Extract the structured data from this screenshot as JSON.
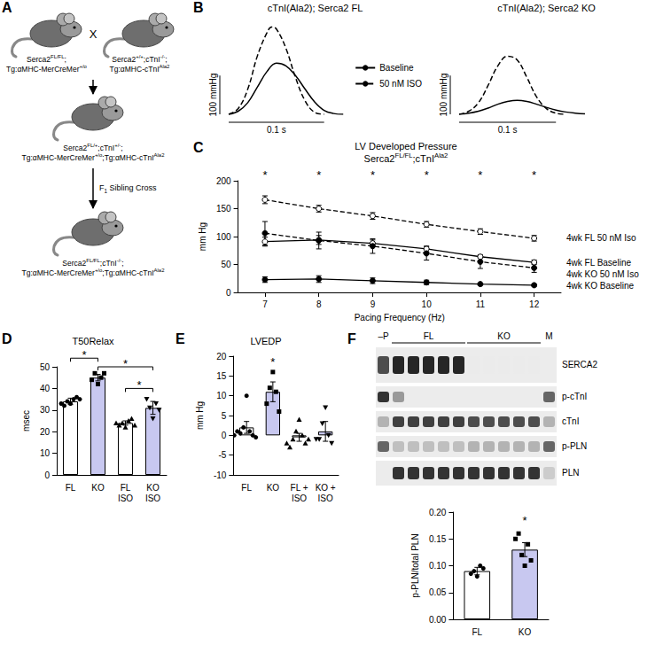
{
  "figure": {
    "A": {
      "panel": "A",
      "parent_1": [
        [
          "Serca2",
          {
            "sup": "FL/FL"
          },
          ";"
        ],
        [
          "Tg:αMHC-MerCreMer",
          {
            "sup": "+/o"
          }
        ]
      ],
      "cross": "X",
      "parent_2": [
        [
          "Serca2",
          {
            "sup": "+/+"
          },
          ";cTnI",
          {
            "sup": "-/-"
          },
          ";"
        ],
        [
          "Tg:αMHC-cTnI",
          {
            "sup": "Ala2"
          }
        ]
      ],
      "f1": [
        [
          "Serca2",
          {
            "sup": "FL/+"
          },
          ";cTnI",
          {
            "sup": "+/-"
          },
          ";"
        ],
        [
          "Tg:αMHC-MerCreMer",
          {
            "sup": "+/o"
          },
          ";Tg:αMHC-cTnI",
          {
            "sup": "Ala2"
          }
        ]
      ],
      "step": [
        [
          "F",
          {
            "sub": "1"
          },
          " Sibling Cross"
        ]
      ],
      "offspring": [
        [
          "Serca2",
          {
            "sup": "FL/FL"
          },
          ";cTnI",
          {
            "sup": "-/-"
          },
          ";"
        ],
        [
          "Tg:αMHC-MerCreMer",
          {
            "sup": "+/o"
          },
          ";Tg:αMHC-cTnI",
          {
            "sup": "Ala2"
          }
        ]
      ]
    },
    "F_blot": {
      "panel": "F",
      "lane_heads": [
        "–P",
        "FL",
        "KO",
        "M"
      ],
      "rows": [
        "SERCA2",
        "p-cTnI",
        "cTnI",
        "p-PLN",
        "PLN"
      ]
    }
  },
  "chart_data": [
    {
      "panel": "B",
      "type": "line",
      "title": "cTnI(Ala2); Serca2 FL",
      "tick_labels": false,
      "legend": "right",
      "xlim": [
        0,
        0.13
      ],
      "ylim": [
        0,
        240
      ],
      "scale_bar": {
        "x": 0.1,
        "x_label": "0.1 s",
        "y": 100,
        "y_label": "100 mmHg"
      },
      "series": [
        {
          "name": "Baseline",
          "color": "#000000",
          "line_style": "solid",
          "x": [
            0,
            0.01,
            0.02,
            0.03,
            0.04,
            0.05,
            0.06,
            0.07,
            0.08,
            0.09,
            0.1,
            0.11,
            0.12
          ],
          "values": [
            0,
            8,
            30,
            70,
            110,
            132,
            125,
            100,
            65,
            32,
            10,
            2,
            0
          ]
        },
        {
          "name": "50 nM ISO",
          "color": "#000000",
          "line_style": "dashed",
          "x": [
            0,
            0.01,
            0.02,
            0.03,
            0.04,
            0.045,
            0.05,
            0.06,
            0.07,
            0.08,
            0.09,
            0.1
          ],
          "values": [
            0,
            15,
            65,
            150,
            210,
            225,
            220,
            170,
            95,
            35,
            5,
            0
          ]
        }
      ]
    },
    {
      "type": "line",
      "title": "cTnI(Ala2); Serca2 KO",
      "tick_labels": false,
      "xlim": [
        0,
        0.13
      ],
      "ylim": [
        0,
        240
      ],
      "scale_bar": {
        "x": 0.1,
        "x_label": "0.1 s",
        "y": 100,
        "y_label": "100 mmHg"
      },
      "series": [
        {
          "name": "Baseline",
          "color": "#000000",
          "line_style": "solid",
          "x": [
            0,
            0.01,
            0.02,
            0.03,
            0.04,
            0.05,
            0.06,
            0.07,
            0.08,
            0.09,
            0.1,
            0.11,
            0.12,
            0.13
          ],
          "values": [
            0,
            3,
            8,
            16,
            26,
            33,
            36,
            33,
            26,
            18,
            11,
            6,
            3,
            1
          ]
        },
        {
          "name": "50 nM ISO",
          "color": "#000000",
          "line_style": "dashed",
          "x": [
            0,
            0.01,
            0.02,
            0.03,
            0.04,
            0.05,
            0.06,
            0.07,
            0.08,
            0.09,
            0.1,
            0.11
          ],
          "values": [
            0,
            8,
            30,
            75,
            125,
            150,
            140,
            95,
            45,
            15,
            3,
            0
          ]
        }
      ]
    },
    {
      "panel": "C",
      "type": "line",
      "title": [
        [
          "LV Developed Pressure"
        ],
        [
          "Serca2",
          {
            "sup": "FL/FL"
          },
          ";cTnI",
          {
            "sup": "Ala2"
          }
        ]
      ],
      "x_label": "Pacing Frequency (Hz)",
      "y_label": "mm Hg",
      "legend": "right",
      "x": [
        7,
        8,
        9,
        10,
        11,
        12
      ],
      "xlim": [
        6.5,
        12.5
      ],
      "xticks": [
        7,
        8,
        9,
        10,
        11,
        12
      ],
      "ylim": [
        0,
        200
      ],
      "yticks": [
        0,
        50,
        100,
        150,
        200
      ],
      "series": [
        {
          "name": "4wk FL 50 nM Iso",
          "color": "#000000",
          "marker": "open_circle",
          "line_style": "dashed",
          "values": [
            166,
            150,
            137,
            122,
            109,
            97
          ],
          "errors": [
            7,
            6,
            6,
            5,
            5,
            5
          ]
        },
        {
          "name": "4wk FL Baseline",
          "color": "#000000",
          "marker": "open_circle",
          "line_style": "solid",
          "values": [
            91,
            94,
            88,
            78,
            64,
            54
          ],
          "errors": [
            8,
            8,
            6,
            5,
            3,
            4
          ]
        },
        {
          "name": "4wk KO 50 nM Iso",
          "color": "#000000",
          "marker": "circle",
          "line_style": "dashed",
          "values": [
            106,
            93,
            83,
            70,
            55,
            44
          ],
          "errors": [
            21,
            15,
            13,
            12,
            12,
            8
          ]
        },
        {
          "name": "4wk KO Baseline",
          "color": "#000000",
          "marker": "circle",
          "line_style": "solid",
          "values": [
            23,
            24,
            21,
            18,
            15,
            13
          ],
          "errors": [
            5,
            6,
            5,
            4,
            2,
            2
          ]
        }
      ],
      "annotations": [
        {
          "text": "*",
          "x": 7,
          "y": 206
        },
        {
          "text": "*",
          "x": 8,
          "y": 206
        },
        {
          "text": "*",
          "x": 9,
          "y": 206
        },
        {
          "text": "*",
          "x": 10,
          "y": 206
        },
        {
          "text": "*",
          "x": 11,
          "y": 206
        },
        {
          "text": "*",
          "x": 12,
          "y": 206
        }
      ]
    },
    {
      "panel": "D",
      "type": "bar",
      "title": "T50Relax",
      "y_label": "msec",
      "categories": [
        "FL",
        "KO",
        "FL ISO",
        "KO ISO"
      ],
      "values": [
        34,
        45,
        24,
        31
      ],
      "errors": [
        1.5,
        1.5,
        1,
        3
      ],
      "colors": [
        "#ffffff",
        "#c8c8f0",
        "#ffffff",
        "#c8c8f0"
      ],
      "markers": [
        "circle",
        "square",
        "triangle",
        "triangle_down"
      ],
      "points": [
        [
          33,
          34,
          35,
          32,
          36,
          33,
          35
        ],
        [
          42,
          47,
          45,
          44,
          47
        ],
        [
          22,
          24,
          25,
          23,
          26,
          24,
          23
        ],
        [
          26,
          31,
          33,
          35,
          30
        ]
      ],
      "ylim": [
        0,
        50
      ],
      "yticks": [
        0,
        10,
        20,
        30,
        40,
        50
      ],
      "brackets": [
        {
          "from": "FL",
          "to": "KO",
          "y": 54,
          "text": "*"
        },
        {
          "from": "KO",
          "to": "KO ISO",
          "y": 50,
          "text": "*"
        },
        {
          "from": "FL ISO",
          "to": "KO ISO",
          "y": 40,
          "text": "*"
        }
      ]
    },
    {
      "panel": "E",
      "type": "bar",
      "title": "LVEDP",
      "y_label": "mm Hg",
      "categories": [
        "FL",
        "KO",
        "FL + ISO",
        "KO + ISO"
      ],
      "values": [
        2,
        11,
        -0.5,
        1
      ],
      "errors": [
        1.5,
        2.5,
        1,
        2.5
      ],
      "colors": [
        "#ffffff",
        "#c8c8f0",
        "#ffffff",
        "#c8c8f0"
      ],
      "markers": [
        "circle",
        "square",
        "triangle",
        "triangle_down"
      ],
      "points": [
        [
          10,
          2,
          1,
          0.5,
          0,
          1,
          -0.5,
          0
        ],
        [
          16,
          12,
          11,
          8,
          6
        ],
        [
          4,
          1,
          0,
          -1,
          -2,
          -3,
          -1,
          -2
        ],
        [
          7,
          3,
          0,
          -1,
          -2,
          -1
        ]
      ],
      "ylim": [
        -10,
        20
      ],
      "yticks": [
        -10,
        -5,
        0,
        5,
        10,
        15,
        20
      ],
      "annotations": [
        {
          "text": "*",
          "x": "KO",
          "y": 18
        }
      ]
    },
    {
      "type": "bar",
      "y_label": "p-PLN/total PLN",
      "categories": [
        "FL",
        "KO"
      ],
      "values": [
        0.09,
        0.13
      ],
      "errors": [
        0.007,
        0.013
      ],
      "colors": [
        "#ffffff",
        "#c8c8f0"
      ],
      "markers": [
        "circle",
        "square"
      ],
      "points": [
        [
          0.08,
          0.09,
          0.1,
          0.085,
          0.095
        ],
        [
          0.1,
          0.12,
          0.14,
          0.16,
          0.11,
          0.15
        ]
      ],
      "ylim": [
        0,
        0.2
      ],
      "yticks": [
        {
          "value": 0,
          "label": "0.00"
        },
        {
          "value": 0.05,
          "label": "0.05"
        },
        {
          "value": 0.1,
          "label": "0.10"
        },
        {
          "value": 0.15,
          "label": "0.15"
        },
        {
          "value": 0.2,
          "label": "0.20"
        }
      ],
      "annotations": [
        {
          "text": "*",
          "x": "KO",
          "y": 0.18
        }
      ]
    }
  ]
}
